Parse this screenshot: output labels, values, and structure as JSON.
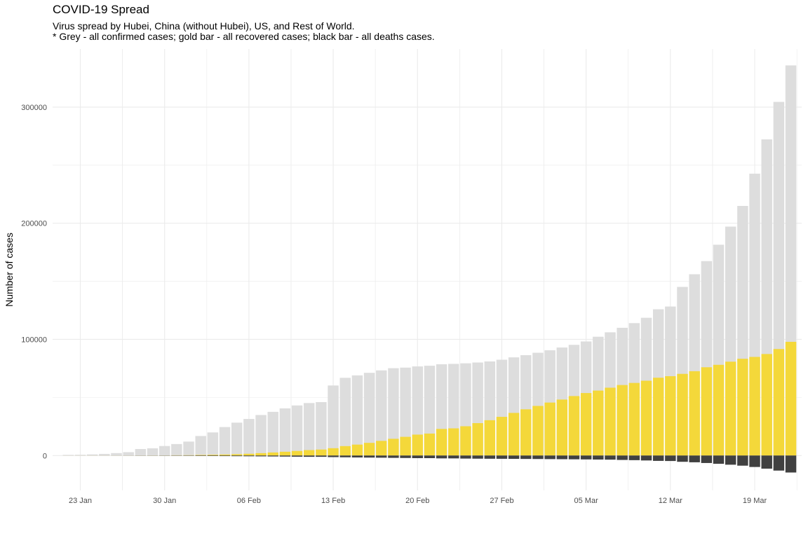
{
  "chart_data": {
    "type": "bar",
    "title": "COVID-19 Spread",
    "subtitle": [
      "Virus spread by Hubei, China (without Hubei), US, and Rest of World.",
      "* Grey - all confirmed cases; gold bar - all recovered cases; black bar - all deaths cases."
    ],
    "xlabel": "",
    "ylabel": "Number of cases",
    "ylim": [
      -30000,
      350000
    ],
    "y_ticks": [
      0,
      100000,
      200000,
      300000
    ],
    "y_tick_labels": [
      "0",
      "100000",
      "200000",
      "300000"
    ],
    "x_ticks": [
      "2020-01-23",
      "2020-01-30",
      "2020-02-06",
      "2020-02-13",
      "2020-02-20",
      "2020-02-27",
      "2020-03-05",
      "2020-03-12",
      "2020-03-19"
    ],
    "x_tick_labels": [
      "23 Jan",
      "30 Jan",
      "06 Feb",
      "13 Feb",
      "20 Feb",
      "27 Feb",
      "05 Mar",
      "12 Mar",
      "19 Mar"
    ],
    "x_start": "2020-01-22",
    "grid": true,
    "colors": {
      "confirmed": "#dddddd",
      "recovered": "#f4d83a",
      "deaths": "#404040",
      "grid": "#ebebeb"
    },
    "series": [
      {
        "name": "confirmed",
        "values": [
          550,
          650,
          950,
          1400,
          2100,
          2900,
          5600,
          6200,
          8200,
          9900,
          12000,
          16800,
          19900,
          24500,
          28300,
          31500,
          34900,
          37600,
          40600,
          43100,
          45200,
          46000,
          60300,
          66900,
          69000,
          71200,
          73300,
          75200,
          75700,
          76700,
          77300,
          78600,
          78900,
          79400,
          80100,
          81000,
          82500,
          84500,
          86400,
          88500,
          90600,
          93000,
          95300,
          98200,
          102300,
          106100,
          110000,
          114000,
          118600,
          125900,
          128300,
          145200,
          156100,
          167400,
          181500,
          197100,
          214900,
          242700,
          272200,
          304500,
          335900
        ]
      },
      {
        "name": "recovered",
        "values": [
          30,
          30,
          40,
          40,
          50,
          60,
          100,
          130,
          140,
          220,
          280,
          470,
          630,
          850,
          1120,
          1500,
          2040,
          2620,
          3250,
          3950,
          4680,
          5150,
          6300,
          8100,
          9400,
          10900,
          12600,
          14400,
          16100,
          18000,
          18900,
          22900,
          23400,
          25200,
          27900,
          30400,
          33300,
          36700,
          39800,
          42700,
          45600,
          48200,
          51200,
          53800,
          55900,
          58400,
          60700,
          62500,
          64400,
          67000,
          68300,
          70300,
          72600,
          76000,
          78100,
          80800,
          83300,
          84900,
          87400,
          91700,
          97900
        ]
      },
      {
        "name": "deaths",
        "values": [
          17,
          18,
          26,
          42,
          56,
          82,
          131,
          133,
          171,
          213,
          259,
          362,
          426,
          492,
          564,
          634,
          719,
          806,
          906,
          1013,
          1113,
          1118,
          1371,
          1523,
          1666,
          1770,
          1868,
          2007,
          2122,
          2247,
          2251,
          2458,
          2469,
          2629,
          2708,
          2770,
          2814,
          2872,
          2941,
          2996,
          3085,
          3160,
          3254,
          3348,
          3460,
          3558,
          3803,
          3996,
          4262,
          4615,
          4720,
          5404,
          5819,
          6440,
          7126,
          7905,
          8733,
          9867,
          11299,
          12973,
          14623
        ]
      }
    ]
  }
}
